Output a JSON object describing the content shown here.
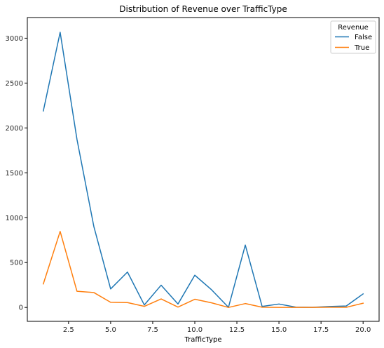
{
  "chart_data": {
    "type": "line",
    "title": "Distribution of Revenue over TrafficType",
    "xlabel": "TrafficType",
    "ylabel": "",
    "xlim": [
      0.05,
      20.95
    ],
    "ylim": [
      -155,
      3230
    ],
    "xticks": [
      2.5,
      5.0,
      7.5,
      10.0,
      12.5,
      15.0,
      17.5,
      20.0
    ],
    "xtick_labels": [
      "2.5",
      "5.0",
      "7.5",
      "10.0",
      "12.5",
      "15.0",
      "17.5",
      "20.0"
    ],
    "yticks": [
      0,
      500,
      1000,
      1500,
      2000,
      2500,
      3000
    ],
    "ytick_labels": [
      "0",
      "500",
      "1000",
      "1500",
      "2000",
      "2500",
      "3000"
    ],
    "grid": false,
    "legend": {
      "title": "Revenue",
      "placement": "top-right"
    },
    "series": [
      {
        "name": "False",
        "color": "#1f77b4",
        "x": [
          1,
          2,
          3,
          4,
          5,
          6,
          7,
          8,
          9,
          10,
          11,
          12,
          13,
          14,
          15,
          16,
          17,
          18,
          19,
          20
        ],
        "values": [
          2189,
          3066,
          1872,
          903,
          206,
          394,
          28,
          248,
          38,
          359,
          196,
          1,
          695,
          11,
          38,
          3,
          1,
          10,
          16,
          151
        ]
      },
      {
        "name": "True",
        "color": "#ff7f0e",
        "x": [
          1,
          2,
          3,
          4,
          5,
          6,
          7,
          8,
          9,
          10,
          11,
          12,
          13,
          14,
          15,
          16,
          17,
          18,
          19,
          20
        ],
        "values": [
          262,
          847,
          180,
          166,
          57,
          54,
          12,
          95,
          4,
          91,
          51,
          0,
          43,
          2,
          0,
          0,
          0,
          2,
          1,
          47
        ]
      }
    ]
  }
}
